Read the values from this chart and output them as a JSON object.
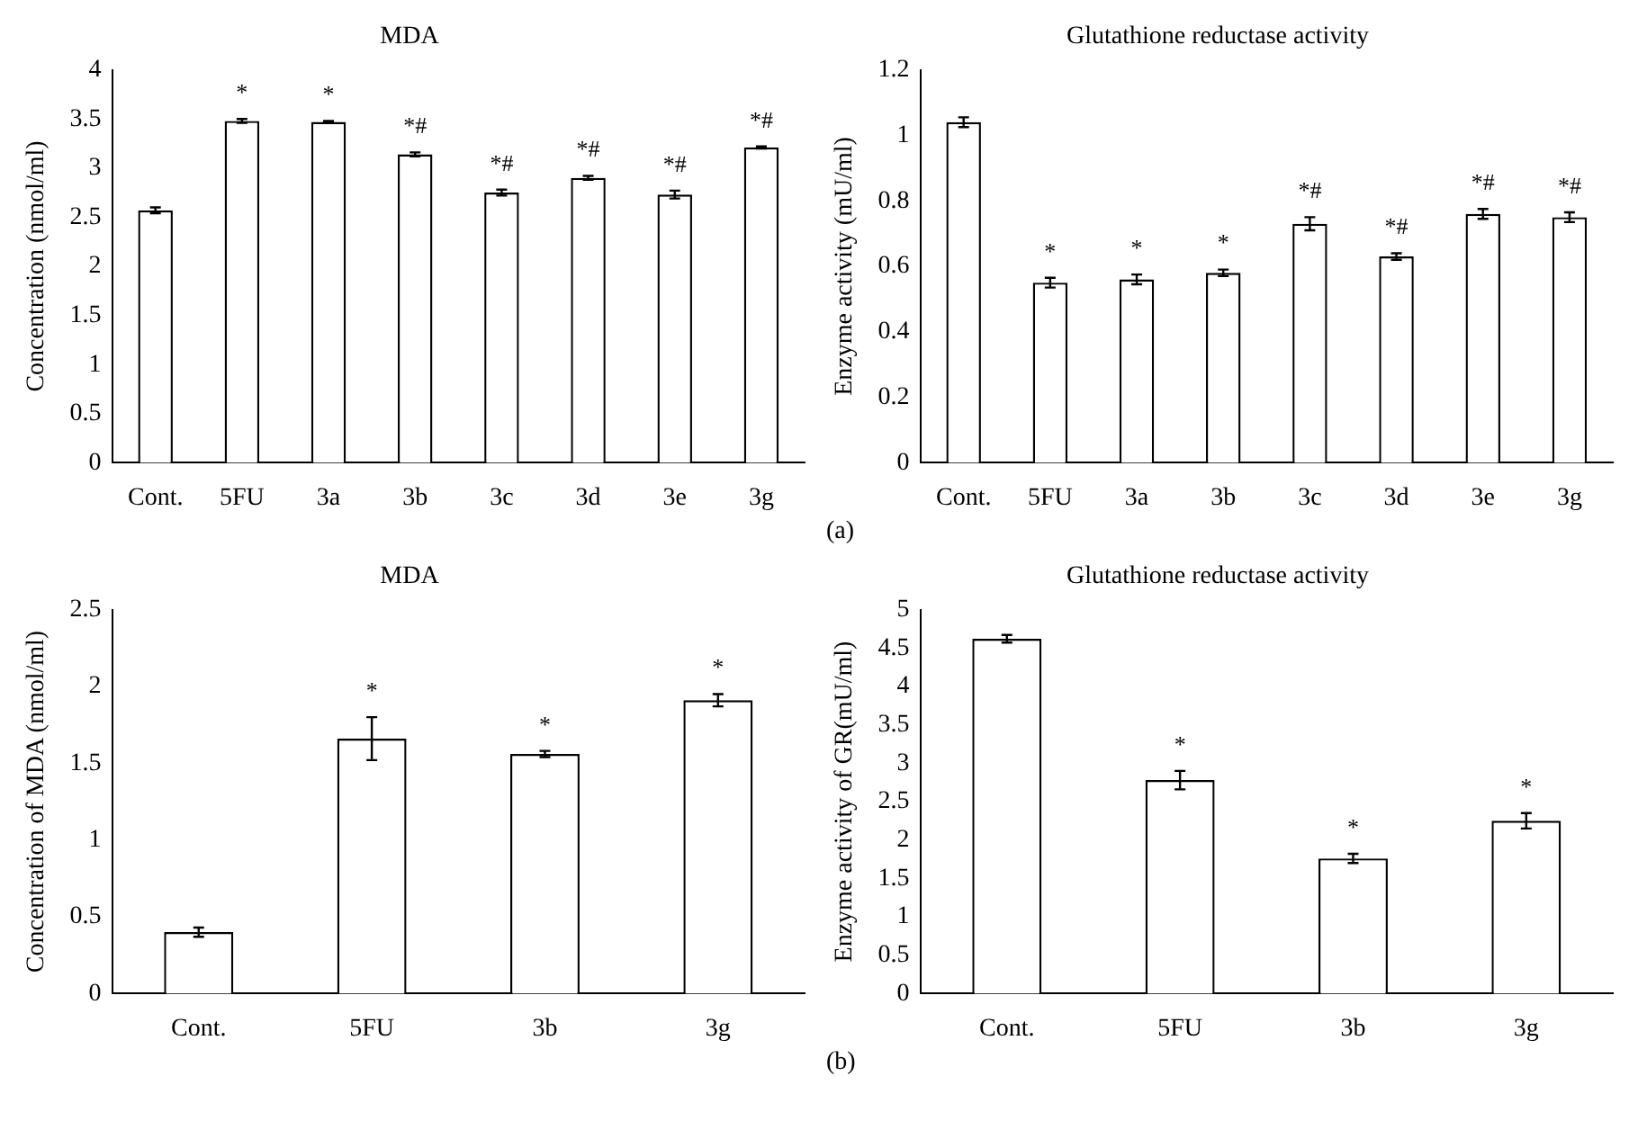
{
  "chart_data": [
    {
      "type": "bar",
      "title": "MDA",
      "ylabel": "Concentration (nmol/ml)",
      "categories": [
        "Cont.",
        "5FU",
        "3a",
        "3b",
        "3c",
        "3d",
        "3e",
        "3g"
      ],
      "values": [
        2.57,
        3.48,
        3.47,
        3.14,
        2.75,
        2.9,
        2.73,
        3.21
      ],
      "errors": [
        0.03,
        0.02,
        0.01,
        0.02,
        0.03,
        0.02,
        0.04,
        0.01
      ],
      "color": "#ffffff",
      "ylim": [
        0,
        4
      ],
      "yticks": [
        0,
        0.5,
        1,
        1.5,
        2,
        2.5,
        3,
        3.5,
        4
      ],
      "annotations": [
        {
          "text": "*",
          "x": "5FU",
          "y": 3.48
        },
        {
          "text": "*",
          "x": "3a",
          "y": 3.47
        },
        {
          "text": "*#",
          "x": "3b",
          "y": 3.14
        },
        {
          "text": "*#",
          "x": "3c",
          "y": 2.75
        },
        {
          "text": "*#",
          "x": "3d",
          "y": 2.9
        },
        {
          "text": "*#",
          "x": "3e",
          "y": 2.73
        },
        {
          "text": "*#",
          "x": "3g",
          "y": 3.21
        }
      ]
    },
    {
      "type": "bar",
      "title": "Glutathione reductase activity",
      "ylabel": "Enzyme activity (mU/ml)",
      "categories": [
        "Cont.",
        "5FU",
        "3a",
        "3b",
        "3c",
        "3d",
        "3e",
        "3g"
      ],
      "values": [
        1.04,
        0.55,
        0.56,
        0.58,
        0.73,
        0.63,
        0.76,
        0.75
      ],
      "errors": [
        0.015,
        0.015,
        0.015,
        0.01,
        0.02,
        0.01,
        0.015,
        0.015
      ],
      "color": "#ffffff",
      "ylim": [
        0,
        1.2
      ],
      "yticks": [
        0,
        0.2,
        0.4,
        0.6,
        0.8,
        1,
        1.2
      ],
      "annotations": [
        {
          "text": "*",
          "x": "5FU",
          "y": 0.55
        },
        {
          "text": "*",
          "x": "3a",
          "y": 0.56
        },
        {
          "text": "*",
          "x": "3b",
          "y": 0.58
        },
        {
          "text": "*#",
          "x": "3c",
          "y": 0.73
        },
        {
          "text": "*#",
          "x": "3d",
          "y": 0.63
        },
        {
          "text": "*#",
          "x": "3e",
          "y": 0.76
        },
        {
          "text": "*#",
          "x": "3g",
          "y": 0.75
        },
        "(a)"
      ]
    },
    {
      "type": "bar",
      "title": "MDA",
      "ylabel": "Concentration of MDA (nmol/ml)",
      "categories": [
        "Cont.",
        "5FU",
        "3b",
        "3g"
      ],
      "values": [
        0.4,
        1.66,
        1.56,
        1.91
      ],
      "errors": [
        0.03,
        0.14,
        0.02,
        0.04
      ],
      "color": "#ffffff",
      "ylim": [
        0,
        2.5
      ],
      "yticks": [
        0,
        0.5,
        1,
        1.5,
        2,
        2.5
      ],
      "annotations": [
        {
          "text": "*",
          "x": "5FU",
          "y": 1.66
        },
        {
          "text": "*",
          "x": "3b",
          "y": 1.56
        },
        {
          "text": "*",
          "x": "3g",
          "y": 1.91
        }
      ]
    },
    {
      "type": "bar",
      "title": "Glutathione reductase activity",
      "ylabel": "Enzyme activity of GR(mU/ml)",
      "categories": [
        "Cont.",
        "5FU",
        "3b",
        "3g"
      ],
      "values": [
        4.62,
        2.78,
        1.76,
        2.25
      ],
      "errors": [
        0.05,
        0.12,
        0.06,
        0.1
      ],
      "color": "#ffffff",
      "ylim": [
        0,
        5
      ],
      "yticks": [
        0,
        0.5,
        1,
        1.5,
        2,
        2.5,
        3,
        3.5,
        4,
        4.5,
        5
      ],
      "annotations": [
        {
          "text": "*",
          "x": "5FU",
          "y": 2.78
        },
        {
          "text": "*",
          "x": "3b",
          "y": 1.76
        },
        {
          "text": "*",
          "x": "3g",
          "y": 2.25
        },
        "(b)"
      ]
    }
  ]
}
